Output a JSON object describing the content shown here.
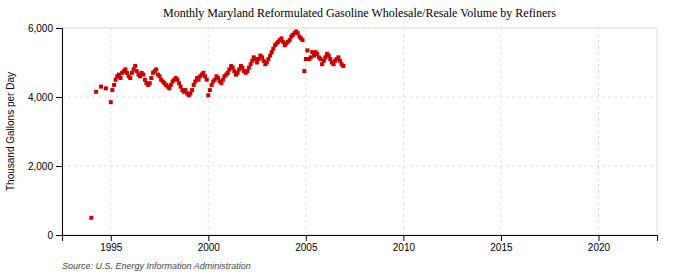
{
  "chart_data": {
    "type": "scatter",
    "title": "Monthly Maryland Reformulated Gasoline Wholesale/Resale Volume by Refiners",
    "ylabel": "Thousand Gallons per Day",
    "source": "Source: U.S. Energy Information Administration",
    "color": "#cc0000",
    "marker": "square",
    "grid": true,
    "xlim": [
      1992.5,
      2023
    ],
    "xticks": [
      1995,
      2000,
      2005,
      2010,
      2015,
      2020
    ],
    "ylim": [
      0,
      6000
    ],
    "yticks": [
      0,
      {
        "value": 2000,
        "label": "2,000"
      },
      {
        "value": 4000,
        "label": "4,000"
      },
      {
        "value": 6000,
        "label": "6,000"
      }
    ],
    "x": [
      1994.0,
      1994.25,
      1994.5,
      1994.75,
      1995.0,
      1995.08,
      1995.17,
      1995.25,
      1995.33,
      1995.42,
      1995.5,
      1995.58,
      1995.67,
      1995.75,
      1995.83,
      1995.92,
      1996.0,
      1996.08,
      1996.17,
      1996.25,
      1996.33,
      1996.42,
      1996.5,
      1996.58,
      1996.67,
      1996.75,
      1996.83,
      1996.92,
      1997.0,
      1997.08,
      1997.17,
      1997.25,
      1997.33,
      1997.42,
      1997.5,
      1997.58,
      1997.67,
      1997.75,
      1997.83,
      1997.92,
      1998.0,
      1998.08,
      1998.17,
      1998.25,
      1998.33,
      1998.42,
      1998.5,
      1998.58,
      1998.67,
      1998.75,
      1998.83,
      1998.92,
      1999.0,
      1999.08,
      1999.17,
      1999.25,
      1999.33,
      1999.42,
      1999.5,
      1999.58,
      1999.67,
      1999.75,
      1999.83,
      1999.92,
      2000.0,
      2000.08,
      2000.17,
      2000.25,
      2000.33,
      2000.42,
      2000.5,
      2000.58,
      2000.67,
      2000.75,
      2000.83,
      2000.92,
      2001.0,
      2001.08,
      2001.17,
      2001.25,
      2001.33,
      2001.42,
      2001.5,
      2001.58,
      2001.67,
      2001.75,
      2001.83,
      2001.92,
      2002.0,
      2002.08,
      2002.17,
      2002.25,
      2002.33,
      2002.42,
      2002.5,
      2002.58,
      2002.67,
      2002.75,
      2002.83,
      2002.92,
      2003.0,
      2003.08,
      2003.17,
      2003.25,
      2003.33,
      2003.42,
      2003.5,
      2003.58,
      2003.67,
      2003.75,
      2003.83,
      2003.92,
      2004.0,
      2004.08,
      2004.17,
      2004.25,
      2004.33,
      2004.42,
      2004.5,
      2004.58,
      2004.67,
      2004.75,
      2004.83,
      2004.92,
      2005.0,
      2005.08,
      2005.17,
      2005.25,
      2005.33,
      2005.42,
      2005.5,
      2005.58,
      2005.67,
      2005.75,
      2005.83,
      2005.92,
      2006.0,
      2006.08,
      2006.17,
      2006.25,
      2006.33,
      2006.42,
      2006.5,
      2006.58,
      2006.67,
      2006.75,
      2006.83,
      2006.92
    ],
    "values": [
      500,
      4150,
      4300,
      4250,
      3850,
      4200,
      4350,
      4500,
      4600,
      4650,
      4550,
      4700,
      4750,
      4800,
      4700,
      4600,
      4550,
      4700,
      4800,
      4900,
      4750,
      4650,
      4600,
      4700,
      4650,
      4500,
      4400,
      4350,
      4400,
      4550,
      4700,
      4750,
      4800,
      4650,
      4600,
      4500,
      4450,
      4400,
      4350,
      4300,
      4250,
      4350,
      4450,
      4500,
      4550,
      4500,
      4400,
      4300,
      4200,
      4150,
      4200,
      4100,
      4050,
      4100,
      4200,
      4350,
      4450,
      4550,
      4500,
      4600,
      4650,
      4700,
      4600,
      4500,
      4050,
      4200,
      4350,
      4450,
      4500,
      4600,
      4550,
      4450,
      4400,
      4500,
      4600,
      4650,
      4700,
      4800,
      4900,
      4850,
      4750,
      4650,
      4700,
      4800,
      4900,
      4850,
      4750,
      4700,
      4750,
      4850,
      4950,
      5050,
      5150,
      5100,
      5000,
      5100,
      5200,
      5150,
      5050,
      4950,
      5000,
      5100,
      5200,
      5300,
      5400,
      5500,
      5550,
      5600,
      5650,
      5700,
      5600,
      5500,
      5550,
      5600,
      5650,
      5750,
      5800,
      5850,
      5900,
      5850,
      5750,
      5700,
      5650,
      4750,
      5100,
      5350,
      5100,
      5150,
      5300,
      5200,
      5300,
      5250,
      5150,
      5100,
      4950,
      5050,
      5150,
      5250,
      5200,
      5100,
      5000,
      4950,
      5050,
      5100,
      5150,
      5050,
      4950,
      4900
    ]
  }
}
